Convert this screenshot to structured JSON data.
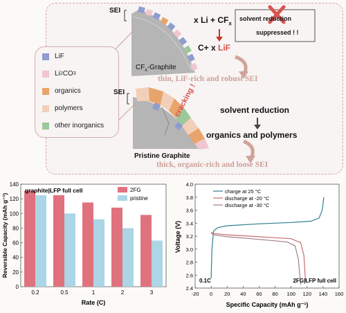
{
  "legend": [
    {
      "label": "LiF",
      "color": "#8f9ccf"
    },
    {
      "label": "Li2CO3",
      "label_main": "Li",
      "label_sub": "2",
      "label_tail": "CO",
      "label_sub2": "3",
      "color": "#f0c6cf"
    },
    {
      "label": "organics",
      "color": "#e8a46a"
    },
    {
      "label": "polymers",
      "color": "#f2cfb9"
    },
    {
      "label": "other inorganics",
      "color": "#9cc89a"
    }
  ],
  "diagram": {
    "sei_label": "SEI",
    "cfx_graphite_main": "CF",
    "cfx_graphite_sub": "x",
    "cfx_graphite_tail": "-Graphite",
    "pristine_label": "Pristine Graphite",
    "reaction1_left": "x Li + CF",
    "reaction1_sub": "x",
    "reaction1_right_prefix": "C+ x ",
    "reaction1_right_lif": "LiF",
    "suppressed_line1": "solvent reduction",
    "suppressed_line2": "suppressed ! !",
    "thin_caption": "thin, LiF-rich and robust SEI",
    "cracking": "cracking !",
    "solvent_reduction": "solvent reduction",
    "organics_polymers": "organics and polymers",
    "thick_caption": "thick, organic-rich and loose SEI"
  },
  "bar_chart": {
    "chart_data": {
      "type": "bar",
      "annotation": "graphite|LFP full cell",
      "categories": [
        "0.2",
        "0.5",
        "1",
        "2",
        "3"
      ],
      "series": [
        {
          "name": "2FG",
          "color": "#e0727e",
          "values": [
            131,
            125,
            115,
            108,
            98
          ]
        },
        {
          "name": "pristine",
          "color": "#acd5e6",
          "values": [
            125,
            100,
            92,
            80,
            63
          ]
        }
      ],
      "xlabel": "Rate (C)",
      "ylabel": "Reversible Capacity (mAh g⁻¹)",
      "ylim": [
        0,
        140
      ],
      "yticks": [
        "0",
        "20",
        "40",
        "60",
        "80",
        "100",
        "120",
        "140"
      ]
    }
  },
  "line_chart": {
    "chart_data": {
      "type": "line",
      "annotation_left": "0.1C",
      "annotation_right": "2FG|LFP full cell",
      "xlabel": "Specific Capacity (mAh g⁻¹)",
      "ylabel": "Voltage (V)",
      "xlim": [
        -20,
        160
      ],
      "ylim": [
        2.4,
        4.0
      ],
      "xticks": [
        "-20",
        "0",
        "20",
        "40",
        "60",
        "80",
        "100",
        "120",
        "140",
        "160"
      ],
      "yticks": [
        "2.4",
        "2.6",
        "2.8",
        "3.0",
        "3.2",
        "3.4",
        "3.6",
        "3.8",
        "4.0"
      ],
      "series": [
        {
          "name": "charge at 25 °C",
          "color": "#2e7f8f",
          "points": [
            [
              0,
              2.55
            ],
            [
              1,
              3.0
            ],
            [
              3,
              3.28
            ],
            [
              8,
              3.33
            ],
            [
              20,
              3.36
            ],
            [
              60,
              3.39
            ],
            [
              100,
              3.41
            ],
            [
              125,
              3.43
            ],
            [
              135,
              3.48
            ],
            [
              139,
              3.6
            ],
            [
              141,
              3.8
            ]
          ]
        },
        {
          "name": "discharge at -20 °C",
          "color": "#c46b6f",
          "points": [
            [
              0,
              3.26
            ],
            [
              3,
              3.24
            ],
            [
              20,
              3.22
            ],
            [
              60,
              3.19
            ],
            [
              100,
              3.16
            ],
            [
              112,
              3.1
            ],
            [
              116,
              2.9
            ],
            [
              118,
              2.5
            ]
          ]
        },
        {
          "name": "discharge at -30 °C",
          "color": "#a37c8a",
          "points": [
            [
              0,
              3.25
            ],
            [
              3,
              3.22
            ],
            [
              20,
              3.19
            ],
            [
              60,
              3.15
            ],
            [
              95,
              3.11
            ],
            [
              105,
              3.05
            ],
            [
              109,
              2.85
            ],
            [
              112,
              2.45
            ]
          ]
        }
      ]
    }
  }
}
